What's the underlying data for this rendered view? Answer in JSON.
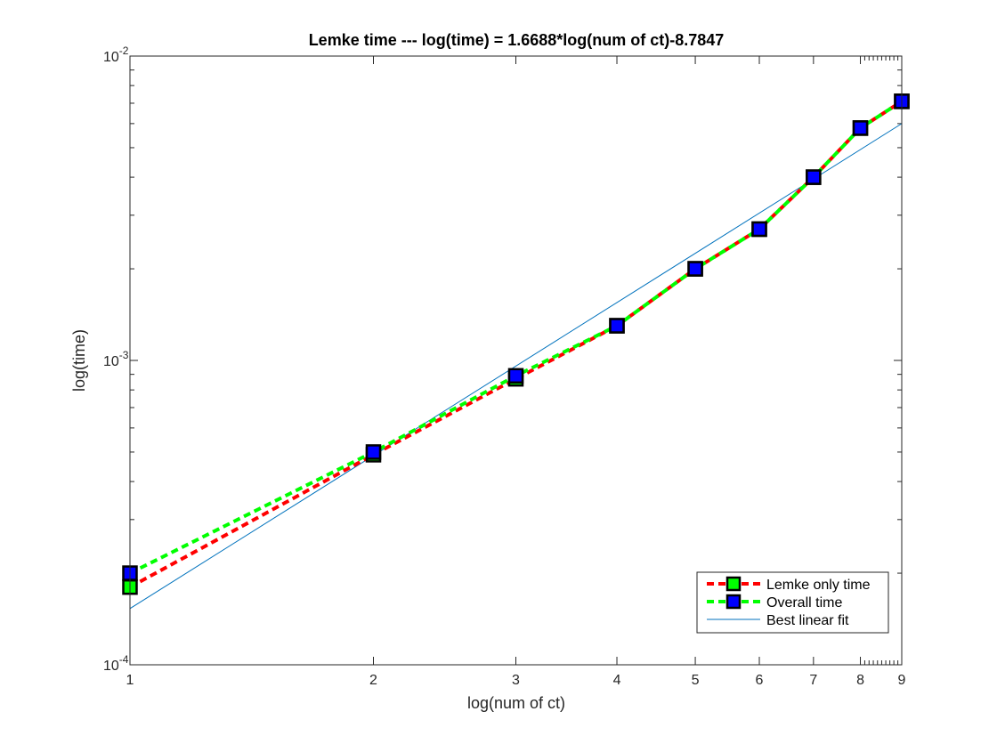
{
  "chart_data": {
    "type": "line",
    "title": "Lemke time --- log(time) = 1.6688*log(num of ct)-8.7847",
    "xlabel": "log(num of ct)",
    "ylabel": "log(time)",
    "x_scale": "log",
    "y_scale": "log",
    "xlim": [
      1,
      9
    ],
    "ylim": [
      0.0001,
      0.01
    ],
    "x_ticks": [
      1,
      2,
      3,
      4,
      5,
      6,
      7,
      8,
      9
    ],
    "x_tick_labels": [
      "1",
      "2",
      "3",
      "4",
      "5",
      "6",
      "7",
      "8",
      "9"
    ],
    "y_ticks": [
      0.0001,
      0.001,
      0.01
    ],
    "y_tick_labels": [
      {
        "base": "10",
        "exp": "-4"
      },
      {
        "base": "10",
        "exp": "-3"
      },
      {
        "base": "10",
        "exp": "-2"
      }
    ],
    "grid": false,
    "legend_position": "bottom-right",
    "x": [
      1,
      2,
      3,
      4,
      5,
      6,
      7,
      8,
      9
    ],
    "series": [
      {
        "name": "Lemke only time",
        "style": "dashed-markers",
        "line_color": "#ff0000",
        "marker_face": "#00ff00",
        "marker_edge": "#000000",
        "values": [
          0.00018,
          0.00049,
          0.00087,
          0.0013,
          0.002,
          0.0027,
          0.004,
          0.0058,
          0.0071
        ]
      },
      {
        "name": "Overall time",
        "style": "dashed-markers",
        "line_color": "#00ff00",
        "marker_face": "#0000ff",
        "marker_edge": "#000000",
        "values": [
          0.0002,
          0.0005,
          0.00089,
          0.0013,
          0.002,
          0.0027,
          0.004,
          0.0058,
          0.0071
        ]
      },
      {
        "name": "Best linear fit",
        "style": "solid",
        "line_color": "#0072bd",
        "x": [
          1,
          9
        ],
        "values": [
          0.000153,
          0.006
        ]
      }
    ]
  }
}
